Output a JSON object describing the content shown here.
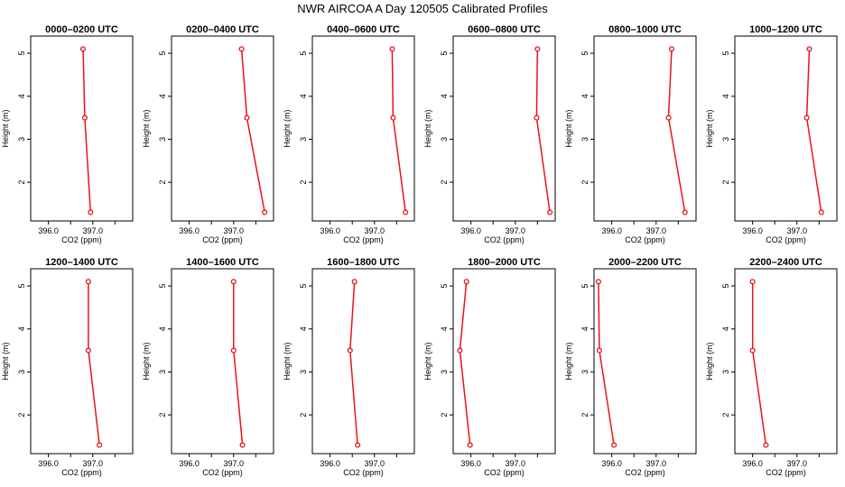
{
  "title": "NWR AIRCOA A  Day 120505  Calibrated Profiles",
  "colors": {
    "series": "#e8141a",
    "axis": "#000000",
    "background": "#ffffff"
  },
  "chart_data": {
    "type": "line",
    "title": "NWR AIRCOA A  Day 120505  Calibrated Profiles",
    "xlabel": "CO2 (ppm)",
    "ylabel": "Height (m)",
    "xlim": [
      395.6,
      397.9
    ],
    "ylim": [
      1.1,
      5.4
    ],
    "xticks": [
      396.0,
      396.5,
      397.0,
      397.5
    ],
    "xtick_labels": [
      "396.0",
      "",
      "397.0",
      ""
    ],
    "yticks": [
      2,
      3,
      4,
      5
    ],
    "ytick_labels": [
      "2",
      "3",
      "4",
      "5"
    ],
    "marker": "open-circle",
    "panels": [
      {
        "title": "0000–0200 UTC",
        "points": [
          {
            "x": 396.78,
            "y": 5.1
          },
          {
            "x": 396.82,
            "y": 3.5
          },
          {
            "x": 396.95,
            "y": 1.3
          }
        ]
      },
      {
        "title": "0200–0400 UTC",
        "points": [
          {
            "x": 397.18,
            "y": 5.1
          },
          {
            "x": 397.3,
            "y": 3.5
          },
          {
            "x": 397.7,
            "y": 1.3
          }
        ]
      },
      {
        "title": "0400–0600 UTC",
        "points": [
          {
            "x": 397.4,
            "y": 5.1
          },
          {
            "x": 397.42,
            "y": 3.5
          },
          {
            "x": 397.7,
            "y": 1.3
          }
        ]
      },
      {
        "title": "0600–0800 UTC",
        "points": [
          {
            "x": 397.5,
            "y": 5.1
          },
          {
            "x": 397.48,
            "y": 3.5
          },
          {
            "x": 397.78,
            "y": 1.3
          }
        ]
      },
      {
        "title": "0800–1000 UTC",
        "points": [
          {
            "x": 397.35,
            "y": 5.1
          },
          {
            "x": 397.28,
            "y": 3.5
          },
          {
            "x": 397.65,
            "y": 1.3
          }
        ]
      },
      {
        "title": "1000–1200 UTC",
        "points": [
          {
            "x": 397.28,
            "y": 5.1
          },
          {
            "x": 397.22,
            "y": 3.5
          },
          {
            "x": 397.55,
            "y": 1.3
          }
        ]
      },
      {
        "title": "1200–1400 UTC",
        "points": [
          {
            "x": 396.9,
            "y": 5.1
          },
          {
            "x": 396.9,
            "y": 3.5
          },
          {
            "x": 397.15,
            "y": 1.3
          }
        ]
      },
      {
        "title": "1400–1600 UTC",
        "points": [
          {
            "x": 397.0,
            "y": 5.1
          },
          {
            "x": 397.0,
            "y": 3.5
          },
          {
            "x": 397.2,
            "y": 1.3
          }
        ]
      },
      {
        "title": "1600–1800 UTC",
        "points": [
          {
            "x": 396.55,
            "y": 5.1
          },
          {
            "x": 396.45,
            "y": 3.5
          },
          {
            "x": 396.62,
            "y": 1.3
          }
        ]
      },
      {
        "title": "1800–2000 UTC",
        "points": [
          {
            "x": 395.9,
            "y": 5.1
          },
          {
            "x": 395.75,
            "y": 3.5
          },
          {
            "x": 395.98,
            "y": 1.3
          }
        ]
      },
      {
        "title": "2000–2200 UTC",
        "points": [
          {
            "x": 395.7,
            "y": 5.1
          },
          {
            "x": 395.72,
            "y": 3.5
          },
          {
            "x": 396.05,
            "y": 1.3
          }
        ]
      },
      {
        "title": "2200–2400 UTC",
        "points": [
          {
            "x": 396.0,
            "y": 5.1
          },
          {
            "x": 396.0,
            "y": 3.5
          },
          {
            "x": 396.3,
            "y": 1.3
          }
        ]
      }
    ]
  }
}
